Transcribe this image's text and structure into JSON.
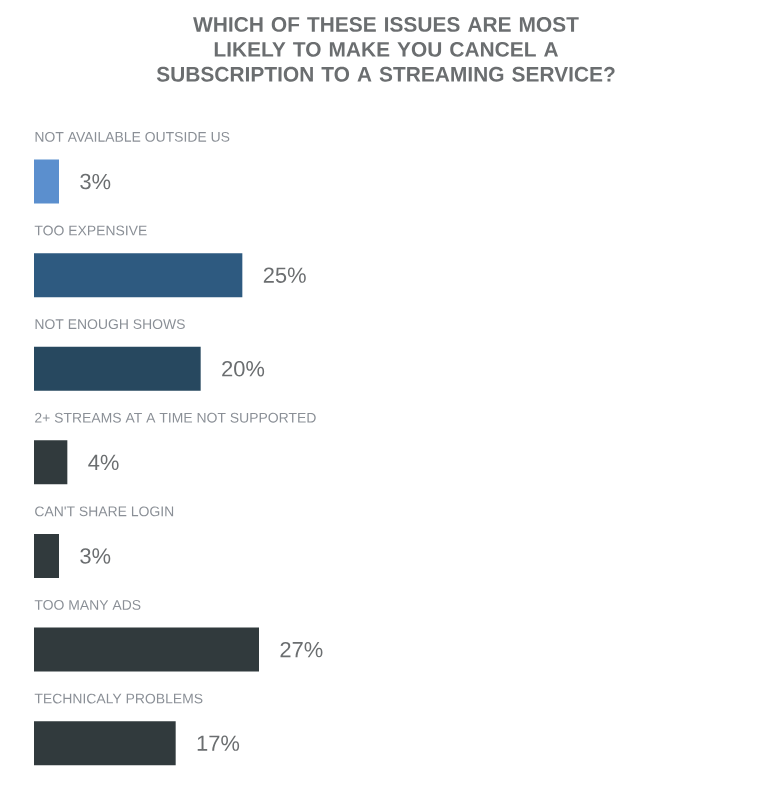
{
  "chart_data": {
    "type": "bar",
    "orientation": "horizontal",
    "title": "WHICH OF THESE ISSUES ARE MOST LIKELY TO MAKE YOU CANCEL A SUBSCRIPTION TO A STREAMING SERVICE?",
    "categories": [
      "NOT AVAILABLE OUTSIDE US",
      "TOO EXPENSIVE",
      "NOT ENOUGH SHOWS",
      "2+ STREAMS AT A TIME NOT SUPPORTED",
      "CAN'T SHARE LOGIN",
      "TOO MANY ADS",
      "TECHNICALY PROBLEMS"
    ],
    "values": [
      3,
      25,
      20,
      4,
      3,
      27,
      17
    ],
    "value_labels": [
      "3%",
      "25%",
      "20%",
      "4%",
      "3%",
      "27%",
      "17%"
    ],
    "colors": [
      "#5b8fce",
      "#2e5a80",
      "#27485f",
      "#313a3d",
      "#313a3d",
      "#313a3d",
      "#313a3d"
    ]
  }
}
